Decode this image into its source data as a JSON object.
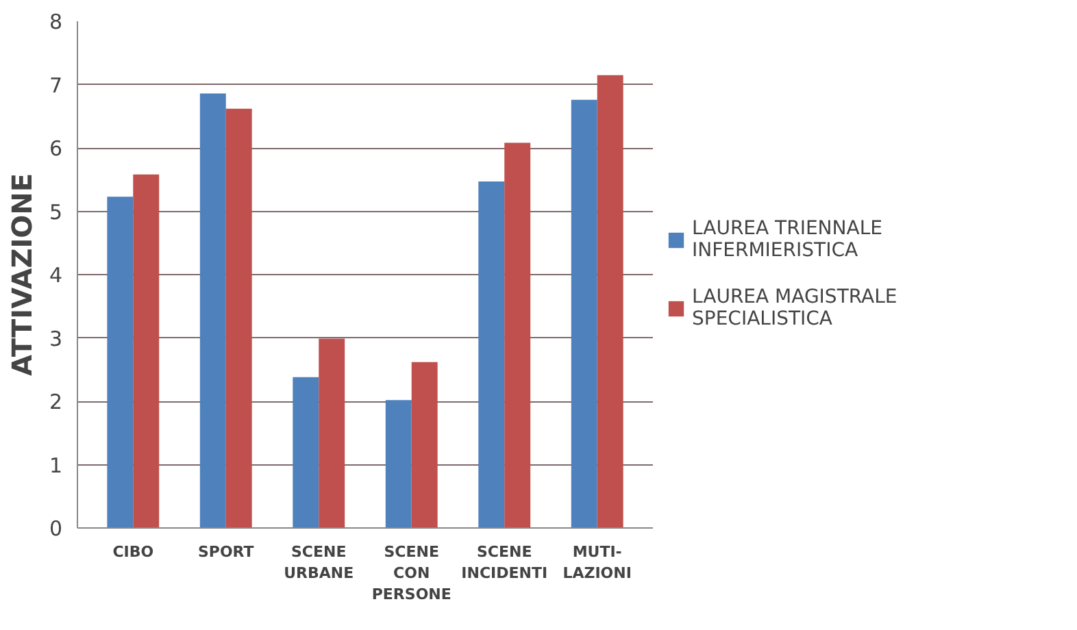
{
  "chart_data": {
    "type": "bar",
    "ylabel": "ATTIVAZIONE",
    "categories": [
      "CIBO",
      "SPORT",
      "SCENE\nURBANE",
      "SCENE\nCON\nPERSONE",
      "SCENE\nINCIDENTI",
      "MUTI-\nLAZIONI"
    ],
    "series": [
      {
        "name": "LAUREA TRIENNALE\nINFERMIERISTICA",
        "color": "#4f81bd",
        "values": [
          5.23,
          6.86,
          2.38,
          2.02,
          5.47,
          6.76
        ]
      },
      {
        "name": "LAUREA MAGISTRALE\nSPECIALISTICA",
        "color": "#c0504d",
        "values": [
          5.58,
          6.62,
          2.99,
          2.62,
          6.08,
          7.15
        ]
      }
    ],
    "ylim": [
      0,
      8
    ],
    "yticks": [
      0,
      1,
      2,
      3,
      4,
      5,
      6,
      7,
      8
    ],
    "grid": "y",
    "legend": "right"
  }
}
